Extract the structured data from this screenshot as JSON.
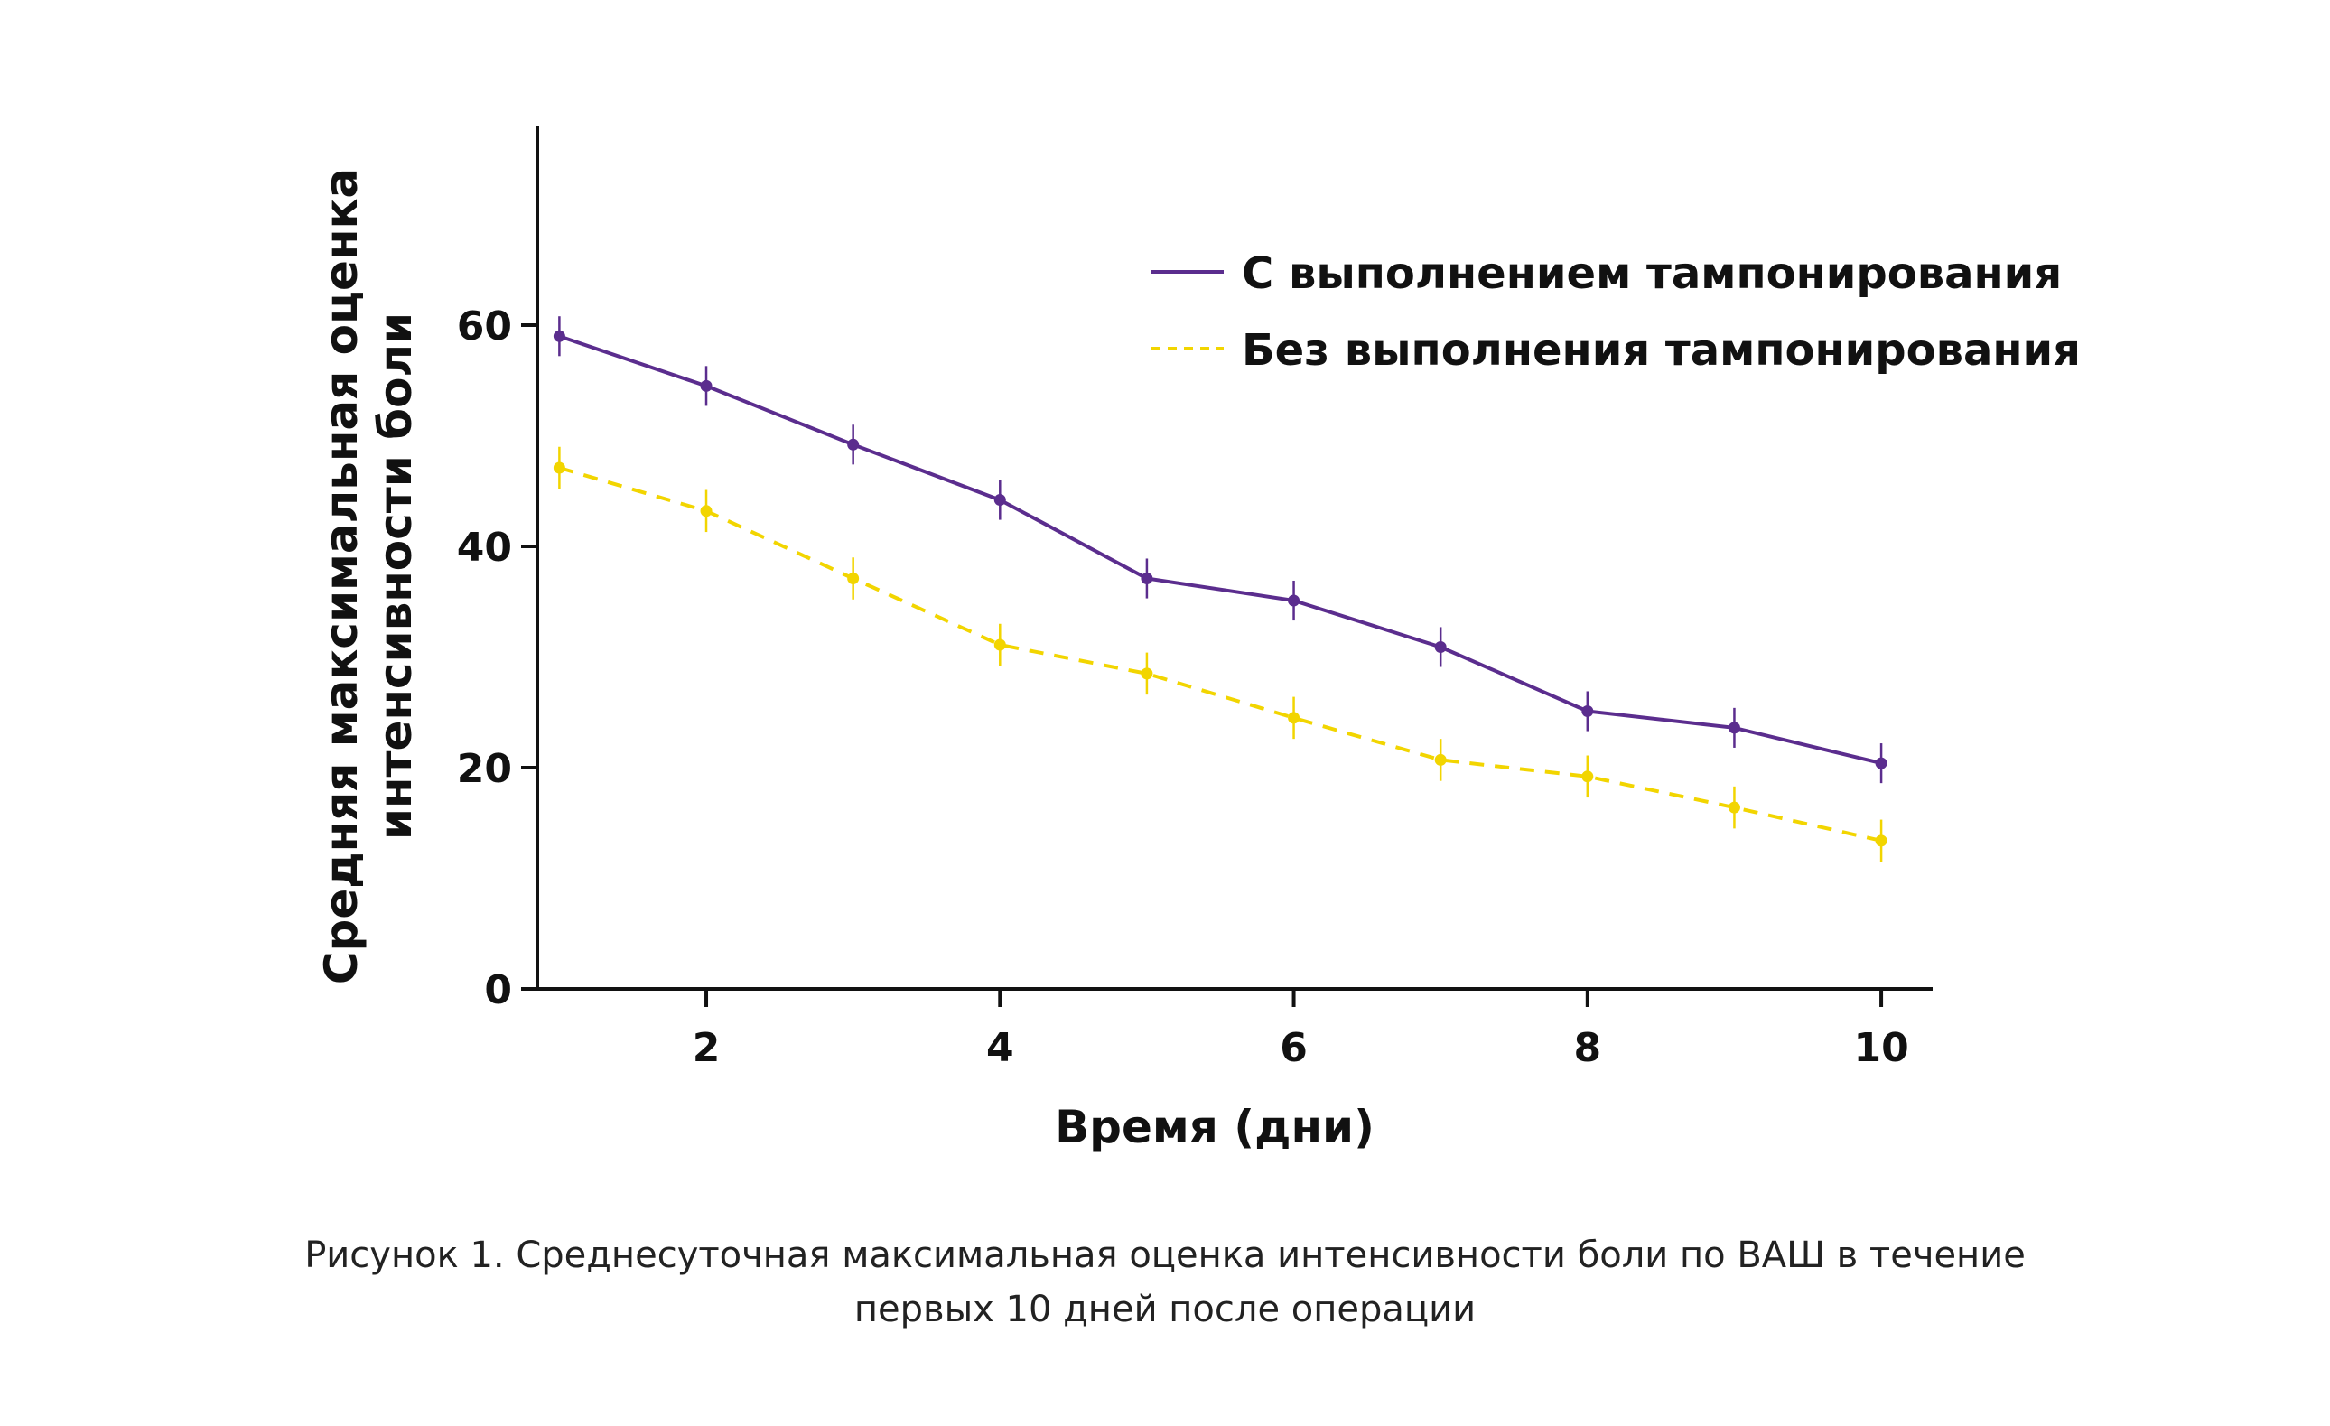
{
  "colors": {
    "series_with": "#5b2d8e",
    "series_without": "#f2d500",
    "axis": "#111111",
    "text": "#111111"
  },
  "chart_data": {
    "type": "line",
    "xlabel": "Время (дни)",
    "ylabel": "Средняя максимальная оценка интенсивности боли",
    "xlim": [
      0.85,
      10.35
    ],
    "ylim": [
      0,
      78
    ],
    "xticks": [
      "2",
      "4",
      "6",
      "8",
      "10"
    ],
    "yticks": [
      "0",
      "20",
      "40",
      "60"
    ],
    "grid": false,
    "legend": "top-right",
    "x": [
      1,
      2,
      3,
      4,
      5,
      6,
      7,
      8,
      9,
      10
    ],
    "series": [
      {
        "name": "С выполнением тампонирования",
        "style": "solid",
        "color": "#5b2d8e",
        "values": [
          59,
          54.5,
          49.2,
          44.2,
          37.1,
          35.1,
          30.9,
          25.1,
          23.6,
          20.4
        ],
        "error": [
          1.8,
          1.8,
          1.8,
          1.8,
          1.8,
          1.8,
          1.8,
          1.8,
          1.8,
          1.8
        ]
      },
      {
        "name": "Без выполнения тампонирования",
        "style": "dashed",
        "color": "#f2d500",
        "values": [
          47.1,
          43.2,
          37.1,
          31.1,
          28.5,
          24.5,
          20.7,
          19.2,
          16.4,
          13.4
        ],
        "error": [
          1.9,
          1.9,
          1.9,
          1.9,
          1.9,
          1.9,
          1.9,
          1.9,
          1.9,
          1.9
        ]
      }
    ]
  },
  "caption": {
    "line1": "Рисунок 1. Среднесуточная максимальная оценка интенсивности боли по ВАШ в течение",
    "line2": "первых 10 дней после операции"
  }
}
